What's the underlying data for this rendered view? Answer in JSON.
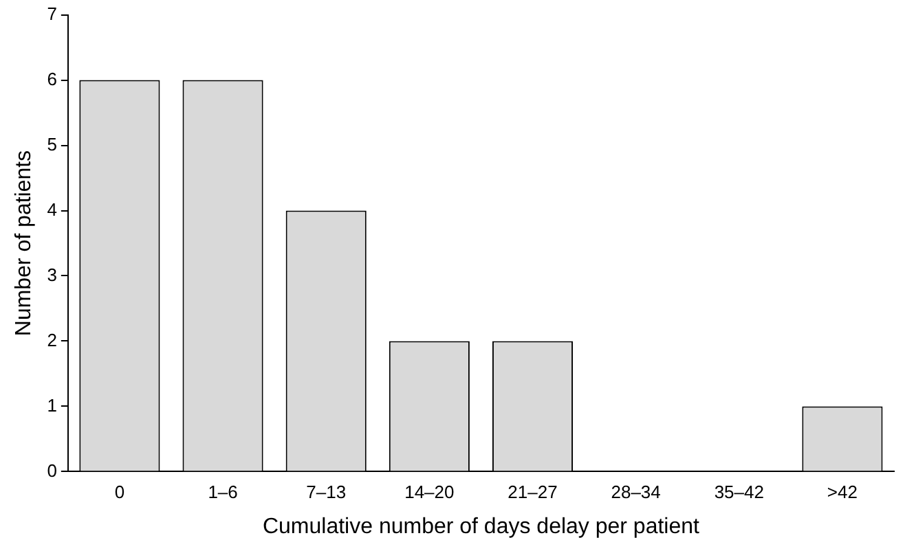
{
  "chart_data": {
    "type": "bar",
    "xlabel": "Cumulative number of days delay per patient",
    "ylabel": "Number of patients",
    "categories": [
      "0",
      "1–6",
      "7–13",
      "14–20",
      "21–27",
      "28–34",
      "35–42",
      ">42"
    ],
    "values": [
      6,
      6,
      4,
      2,
      2,
      0,
      0,
      1
    ],
    "color": "#d9d9d9",
    "ylim": [
      0,
      7
    ],
    "yticks": [
      0,
      1,
      2,
      3,
      4,
      5,
      6,
      7
    ],
    "grid": false,
    "legend": false
  }
}
